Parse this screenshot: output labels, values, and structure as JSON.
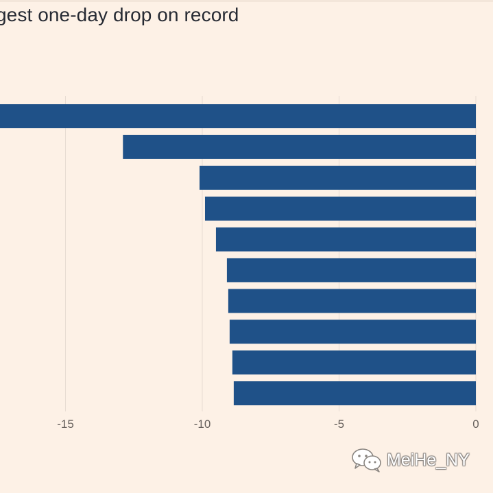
{
  "title": "gest one-day drop on record",
  "chart_data": {
    "type": "bar",
    "orientation": "horizontal",
    "title": "gest one-day drop on record",
    "xlabel": "",
    "ylabel": "",
    "xlim": [
      -17.4,
      0
    ],
    "xticks": [
      -15,
      -10,
      -5,
      0
    ],
    "tick_labels": [
      "-15",
      "-10",
      "-5",
      "0"
    ],
    "grid": true,
    "values": [
      -17.4,
      -12.9,
      -10.1,
      -9.9,
      -9.5,
      -9.1,
      -9.05,
      -9.0,
      -8.9,
      -8.85
    ]
  },
  "colors": {
    "background": "#fdf1e6",
    "bar": "#1f5188",
    "grid": "#e7dcd2",
    "axis": "#66605c",
    "title": "#262a33"
  },
  "watermark": {
    "text": "MeiHe_NY",
    "icon": "wechat-icon"
  }
}
